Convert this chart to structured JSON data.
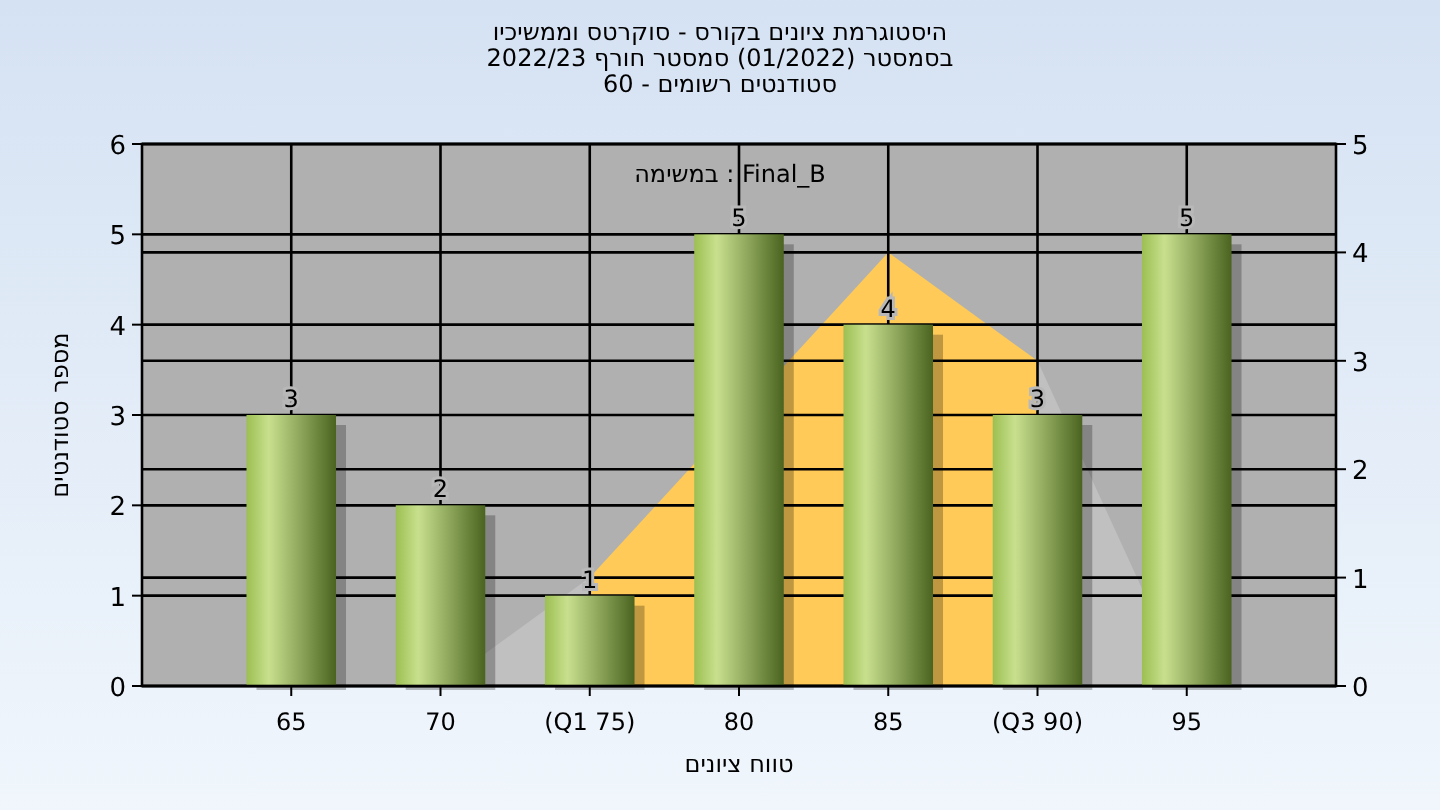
{
  "chart_data": {
    "type": "bar",
    "title": "היסטוגרמת ציונים בקורס - סוקרטס וממשיכיו",
    "subtitle": "בסמסטר  (01/2022)  סמסטר חורף 2022/23\nסטודנטים רשומים - 60",
    "xlabel": "טווח ציונים",
    "ylabel": "מספר סטודנטים",
    "annotations": [
      "במשימה : Final_B"
    ],
    "categories": [
      "65",
      "70",
      "(Q1 75)",
      "80",
      "85",
      "(Q3 90)",
      "95"
    ],
    "series": [
      {
        "type": "area",
        "axis": "y2",
        "color": "#c0c0c0",
        "values": [
          null,
          0,
          1,
          null,
          null,
          null,
          null
        ]
      },
      {
        "type": "area",
        "axis": "y2",
        "color": "#ffca57",
        "values": [
          null,
          null,
          1,
          null,
          4,
          3,
          null
        ]
      },
      {
        "type": "area",
        "axis": "y2",
        "color": "#c0c0c0",
        "values": [
          null,
          null,
          null,
          null,
          null,
          3,
          0
        ]
      },
      {
        "color": "#9cbf52",
        "values": [
          3,
          2,
          1,
          5,
          4,
          3,
          5
        ],
        "value_labels": [
          "3",
          "2",
          "1",
          "5",
          "4",
          "3",
          "5"
        ]
      }
    ],
    "ylim": [
      0,
      6
    ],
    "yticks": [
      0,
      1,
      2,
      3,
      4,
      5,
      6
    ],
    "y2lim": [
      0,
      5
    ],
    "y2ticks": [
      0,
      1,
      2,
      3,
      4,
      5
    ],
    "grid": true
  }
}
